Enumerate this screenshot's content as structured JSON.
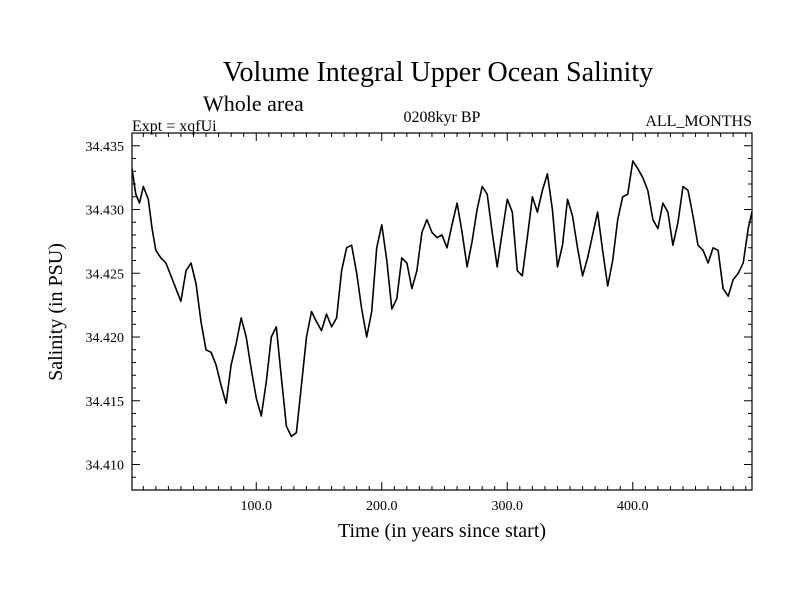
{
  "chart_data": {
    "type": "line",
    "title": "Volume Integral Upper Ocean Salinity",
    "subtitle": "Whole area",
    "experiment_label": "Expt = xqfUi",
    "period_label": "0208kyr BP",
    "months_label": "ALL_MONTHS",
    "xlabel": "Time (in years since start)",
    "ylabel": "Salinity (in PSU)",
    "xlim": [
      1,
      495
    ],
    "ylim": [
      34.408,
      34.436
    ],
    "x_ticks": [
      {
        "value": 100,
        "label": "100.0"
      },
      {
        "value": 200,
        "label": "200.0"
      },
      {
        "value": 300,
        "label": "300.0"
      },
      {
        "value": 400,
        "label": "400.0"
      }
    ],
    "y_ticks": [
      {
        "value": 34.41,
        "label": "34.410"
      },
      {
        "value": 34.415,
        "label": "34.415"
      },
      {
        "value": 34.42,
        "label": "34.420"
      },
      {
        "value": 34.425,
        "label": "34.425"
      },
      {
        "value": 34.43,
        "label": "34.430"
      },
      {
        "value": 34.435,
        "label": "34.435"
      }
    ],
    "series": [
      {
        "name": "salinity",
        "color": "#000000",
        "x": [
          1,
          4,
          7,
          10,
          14,
          17,
          20,
          24,
          28,
          32,
          36,
          40,
          44,
          48,
          52,
          56,
          60,
          64,
          68,
          72,
          76,
          80,
          84,
          88,
          92,
          96,
          100,
          104,
          108,
          112,
          116,
          120,
          124,
          128,
          132,
          136,
          140,
          144,
          148,
          152,
          156,
          160,
          164,
          168,
          172,
          176,
          180,
          184,
          188,
          192,
          196,
          200,
          204,
          208,
          212,
          216,
          220,
          224,
          228,
          232,
          236,
          240,
          244,
          248,
          252,
          256,
          260,
          264,
          268,
          272,
          276,
          280,
          284,
          288,
          292,
          296,
          300,
          304,
          308,
          312,
          316,
          320,
          324,
          328,
          332,
          336,
          340,
          344,
          348,
          352,
          356,
          360,
          364,
          368,
          372,
          376,
          380,
          384,
          388,
          392,
          396,
          400,
          404,
          408,
          412,
          416,
          420,
          424,
          428,
          432,
          436,
          440,
          444,
          448,
          452,
          456,
          460,
          464,
          468,
          472,
          476,
          480,
          484,
          488,
          492,
          495
        ],
        "values": [
          34.4332,
          34.4312,
          34.4305,
          34.4318,
          34.4308,
          34.4285,
          34.4268,
          34.4262,
          34.4258,
          34.4248,
          34.4238,
          34.4228,
          34.4252,
          34.4258,
          34.4242,
          34.4212,
          34.419,
          34.4188,
          34.4178,
          34.4162,
          34.4148,
          34.4178,
          34.4195,
          34.4215,
          34.42,
          34.4175,
          34.4152,
          34.4138,
          34.4165,
          34.42,
          34.4208,
          34.4168,
          34.413,
          34.4122,
          34.4125,
          34.4162,
          34.42,
          34.422,
          34.4212,
          34.4205,
          34.4218,
          34.4208,
          34.4215,
          34.4252,
          34.427,
          34.4272,
          34.425,
          34.4222,
          34.42,
          34.422,
          34.427,
          34.4288,
          34.426,
          34.4222,
          34.423,
          34.4262,
          34.4258,
          34.4238,
          34.4252,
          34.4282,
          34.4292,
          34.4282,
          34.4278,
          34.428,
          34.427,
          34.4288,
          34.4305,
          34.4282,
          34.4255,
          34.4275,
          34.43,
          34.4318,
          34.4312,
          34.4282,
          34.4255,
          34.4282,
          34.4308,
          34.4298,
          34.4252,
          34.4248,
          34.4278,
          34.431,
          34.4298,
          34.4315,
          34.4328,
          34.43,
          34.4255,
          34.4272,
          34.4308,
          34.4295,
          34.427,
          34.4248,
          34.4262,
          34.428,
          34.4298,
          34.4268,
          34.424,
          34.426,
          34.4292,
          34.431,
          34.4312,
          34.4338,
          34.4332,
          34.4325,
          34.4315,
          34.4292,
          34.4285,
          34.4305,
          34.4298,
          34.4272,
          34.429,
          34.4318,
          34.4315,
          34.4295,
          34.4272,
          34.4268,
          34.4258,
          34.427,
          34.4268,
          34.4238,
          34.4232,
          34.4245,
          34.425,
          34.4258,
          34.4285,
          34.4298
        ]
      }
    ]
  }
}
